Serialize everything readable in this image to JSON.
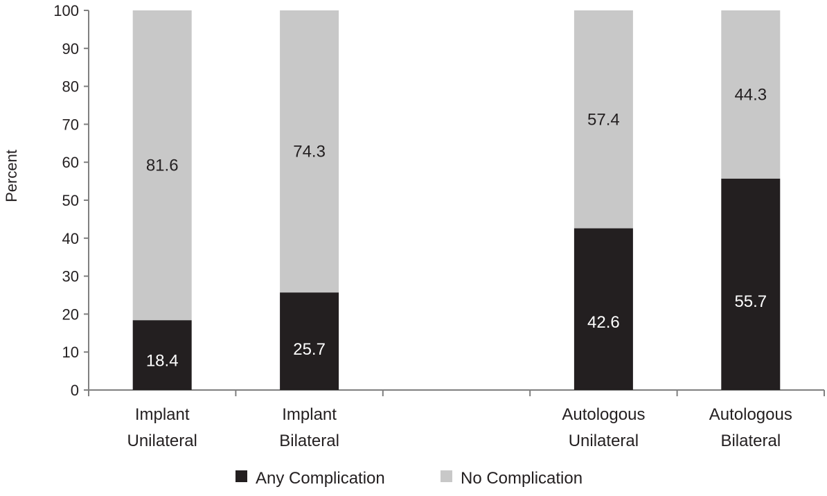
{
  "chart_data": {
    "type": "bar",
    "stacked": true,
    "categories": [
      [
        "Implant",
        "Unilateral"
      ],
      [
        "Implant",
        "Bilateral"
      ],
      [
        "",
        ""
      ],
      [
        "Autologous",
        "Unilateral"
      ],
      [
        "Autologous",
        "Bilateral"
      ]
    ],
    "series": [
      {
        "name": "Any Complication",
        "color": "#231f20",
        "label_color": "#ffffff",
        "values": [
          18.4,
          25.7,
          null,
          42.6,
          55.7
        ]
      },
      {
        "name": "No Complication",
        "color": "#c8c8c8",
        "label_color": "#231f20",
        "values": [
          81.6,
          74.3,
          null,
          57.4,
          44.3
        ]
      }
    ],
    "ylabel": "Percent",
    "xlabel": "",
    "ylim": [
      0,
      100
    ],
    "yticks": [
      0,
      10,
      20,
      30,
      40,
      50,
      60,
      70,
      80,
      90,
      100
    ],
    "grid": false,
    "legend": "bottom"
  }
}
